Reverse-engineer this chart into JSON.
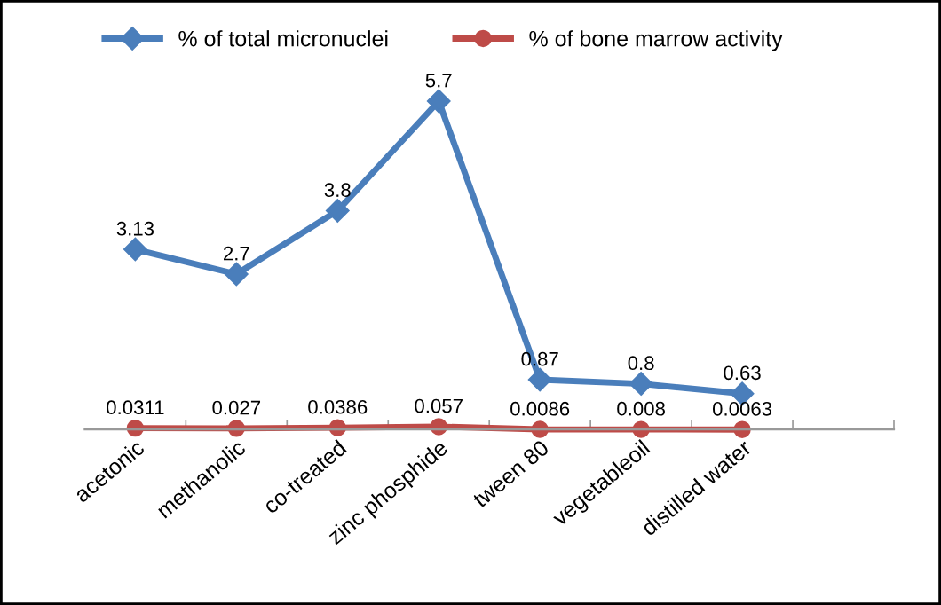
{
  "chart_data": {
    "type": "line",
    "categories": [
      "acetonic",
      "methanolic",
      "co-treated",
      "zinc phosphide",
      "tween 80",
      "vegetableoil",
      "distilled water",
      null
    ],
    "series": [
      {
        "name": "% of total micronuclei",
        "color": "#4a7ebb",
        "marker": "diamond",
        "values": [
          3.13,
          2.7,
          3.8,
          5.7,
          0.87,
          0.8,
          0.63,
          null
        ]
      },
      {
        "name": "% of bone marrow activity",
        "color": "#be4b48",
        "marker": "circle",
        "values": [
          0.0311,
          0.027,
          0.0386,
          0.057,
          0.0086,
          0.008,
          0.0063,
          null
        ]
      }
    ],
    "data_labels": true,
    "legend": "top",
    "grid": false,
    "tick_labels": "x"
  }
}
